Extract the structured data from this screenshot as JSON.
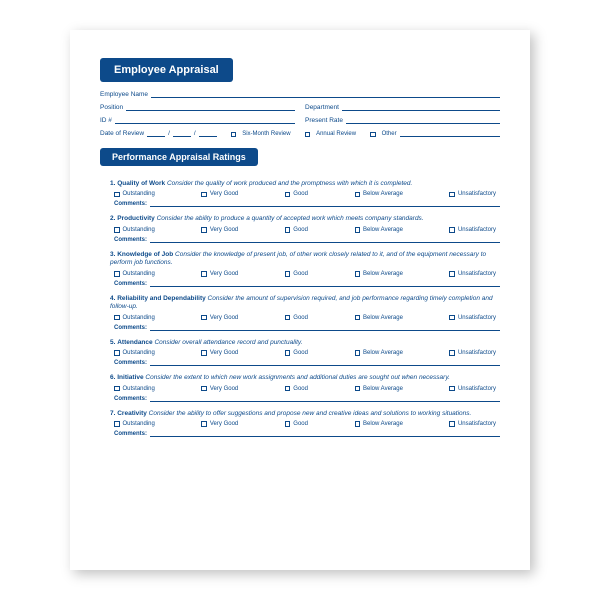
{
  "header": {
    "title": "Employee Appraisal"
  },
  "info": {
    "employee_name_label": "Employee Name",
    "position_label": "Position",
    "department_label": "Department",
    "id_label": "ID #",
    "present_rate_label": "Present Rate",
    "date_of_review_label": "Date of Review",
    "six_month_label": "Six-Month Review",
    "annual_label": "Annual Review",
    "other_label": "Other"
  },
  "section": {
    "title": "Performance Appraisal Ratings"
  },
  "ratings": {
    "opt1": "Outstanding",
    "opt2": "Very Good",
    "opt3": "Good",
    "opt4": "Below Average",
    "opt5": "Unsatisfactory"
  },
  "comments_label": "Comments:",
  "questions": [
    {
      "num": "1.",
      "name": "Quality of Work",
      "desc": "Consider the quality of work produced and the promptness with which it is completed."
    },
    {
      "num": "2.",
      "name": "Productivity",
      "desc": "Consider the ability to produce a quantity of accepted work which meets company standards."
    },
    {
      "num": "3.",
      "name": "Knowledge of Job",
      "desc": "Consider the knowledge of present job, of other work closely related to it, and of the equipment necessary to perform job functions."
    },
    {
      "num": "4.",
      "name": "Reliability and Dependability",
      "desc": "Consider the amount of supervision required, and job performance regarding timely completion and follow-up."
    },
    {
      "num": "5.",
      "name": "Attendance",
      "desc": "Consider overall attendance record and punctuality."
    },
    {
      "num": "6.",
      "name": "Initiative",
      "desc": "Consider the extent to which new work assignments and additional duties are sought out when necessary."
    },
    {
      "num": "7.",
      "name": "Creativity",
      "desc": "Consider the ability to offer suggestions and propose new and creative ideas and solutions to working situations."
    }
  ]
}
